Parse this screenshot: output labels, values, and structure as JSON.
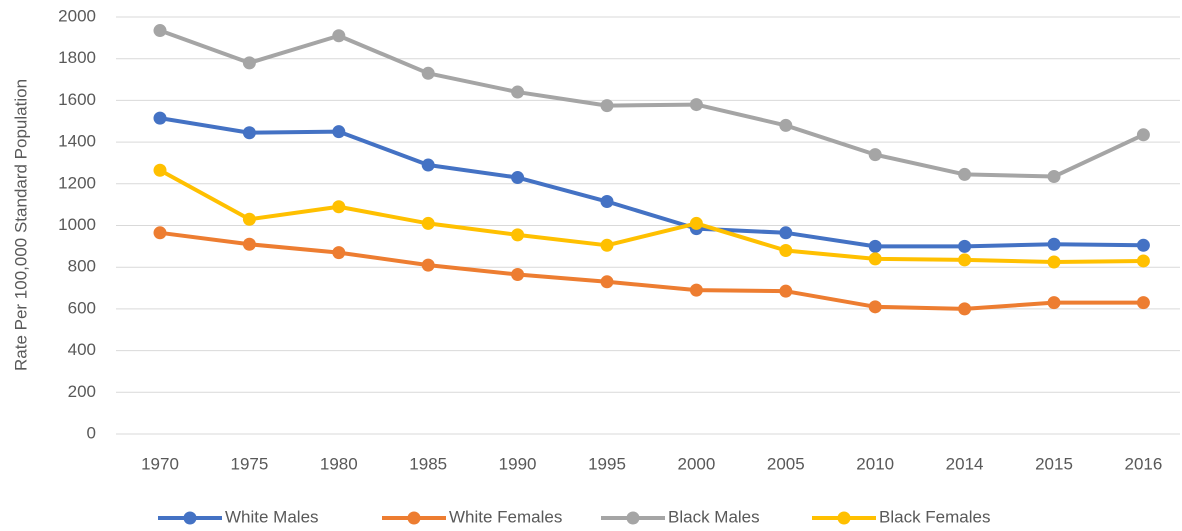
{
  "chart_data": {
    "type": "line",
    "y_label": "Rate Per 100,000 Standard Population",
    "categories": [
      "1970",
      "1975",
      "1980",
      "1985",
      "1990",
      "1995",
      "2000",
      "2005",
      "2010",
      "2014",
      "2015",
      "2016"
    ],
    "series": [
      {
        "name": "White Males",
        "color": "#4472c4",
        "values": [
          1515,
          1445,
          1450,
          1290,
          1230,
          1115,
          985,
          965,
          900,
          900,
          910,
          905
        ]
      },
      {
        "name": "White Females",
        "color": "#ed7d31",
        "values": [
          965,
          910,
          870,
          810,
          765,
          730,
          690,
          685,
          610,
          600,
          630,
          630
        ]
      },
      {
        "name": "Black Males",
        "color": "#a5a5a5",
        "values": [
          1935,
          1780,
          1910,
          1730,
          1640,
          1575,
          1580,
          1480,
          1340,
          1245,
          1235,
          1435
        ]
      },
      {
        "name": "Black Females",
        "color": "#ffc000",
        "values": [
          1265,
          1030,
          1090,
          1010,
          955,
          905,
          1010,
          880,
          840,
          835,
          825,
          830
        ]
      }
    ],
    "ylim": [
      0,
      2000
    ],
    "yticks": [
      0,
      200,
      400,
      600,
      800,
      1000,
      1200,
      1400,
      1600,
      1800,
      2000
    ],
    "grid": true,
    "legend": "bottom"
  }
}
